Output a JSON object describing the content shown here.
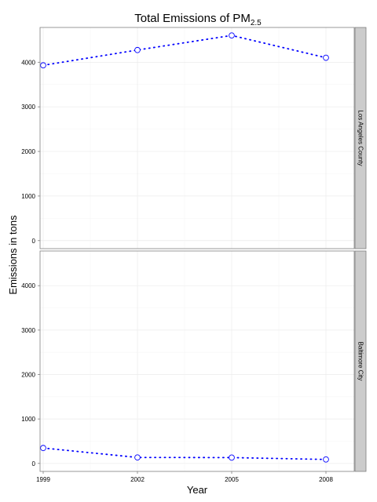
{
  "chart_data": {
    "type": "line",
    "title": "Total Emissions of PM",
    "title_subscript": "2.5",
    "xlabel": "Year",
    "ylabel": "Emissions in tons",
    "x": [
      1999,
      2002,
      2005,
      2008
    ],
    "x_tick_labels": [
      "1999",
      "2002",
      "2005",
      "2008"
    ],
    "xlim": [
      1998.9,
      2008.9
    ],
    "ylim": [
      -180,
      4780
    ],
    "y_ticks": [
      0,
      1000,
      2000,
      3000,
      4000
    ],
    "y_tick_labels": [
      "0",
      "1000",
      "2000",
      "3000",
      "4000"
    ],
    "grid": true,
    "line_style": "dotted",
    "marker": "open-circle",
    "series_color": "#0000ff",
    "panels": [
      {
        "strip_label": "Los Angeles County",
        "values": [
          3931,
          4274,
          4601,
          4101
        ]
      },
      {
        "strip_label": "Baltimore City",
        "values": [
          347,
          134,
          131,
          89
        ]
      }
    ]
  }
}
